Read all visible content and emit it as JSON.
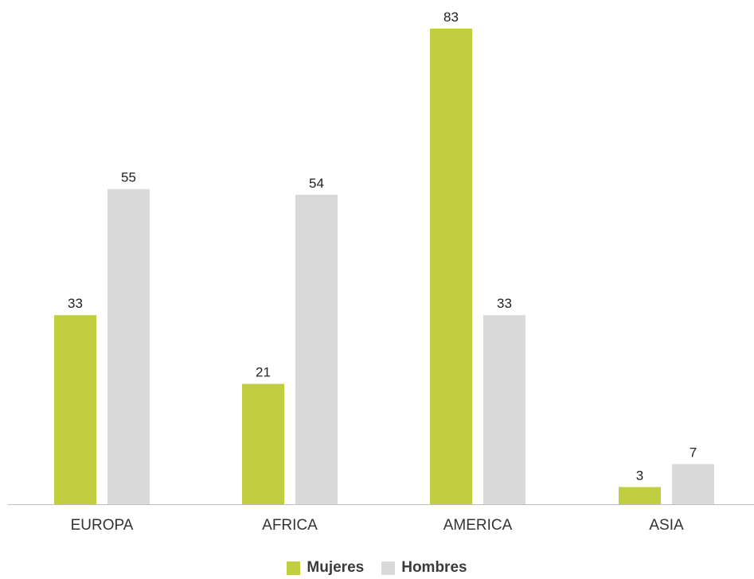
{
  "chart_data": {
    "type": "bar",
    "categories": [
      "EUROPA",
      "AFRICA",
      "AMERICA",
      "ASIA"
    ],
    "series": [
      {
        "name": "Mujeres",
        "color": "#bfcd3e",
        "values": [
          33,
          21,
          83,
          3
        ]
      },
      {
        "name": "Hombres",
        "color": "#d9d9d9",
        "values": [
          55,
          54,
          33,
          7
        ]
      }
    ],
    "ylim": [
      0,
      83
    ],
    "grid": false,
    "legend_position": "bottom-center",
    "axis_color": "#bfbfbf"
  }
}
